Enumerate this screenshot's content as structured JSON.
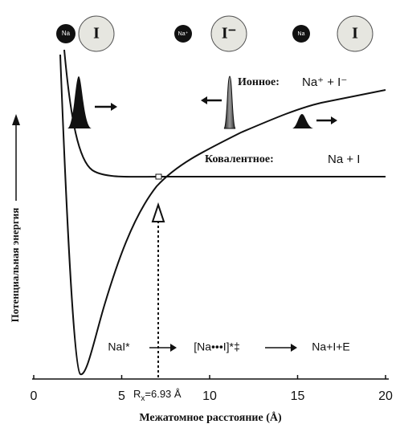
{
  "atoms_top": [
    {
      "na": "Na",
      "i": "I"
    },
    {
      "na": "Na⁺",
      "i": "I⁻"
    },
    {
      "na": "Na",
      "i": "I"
    }
  ],
  "ionic": {
    "label": "Ионное:",
    "formula": "Na⁺ + I⁻"
  },
  "covalent": {
    "label": "Ковалентное:",
    "formula": "Na + I"
  },
  "axis": {
    "y_label": "Потенциальная энергия",
    "x_label": "Межатомное расстояние (Å)",
    "xticks": [
      0,
      5,
      10,
      15,
      20
    ],
    "xlim": [
      0,
      20
    ]
  },
  "crossing": {
    "symbol": "R",
    "subscript": "x",
    "text": "=6.93 Å"
  },
  "reaction": [
    "NaI*",
    "[Na•••I]*‡",
    "Na+I+E"
  ]
}
